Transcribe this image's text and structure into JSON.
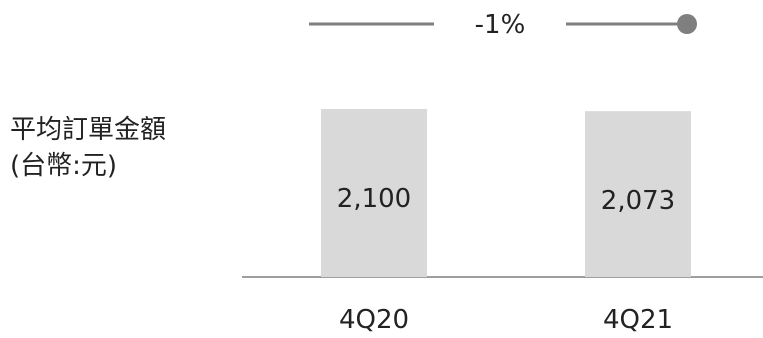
{
  "chart_data": {
    "type": "bar",
    "categories": [
      "4Q20",
      "4Q21"
    ],
    "values": [
      2100,
      2073
    ],
    "value_labels": [
      "2,100",
      "2,073"
    ],
    "ylabel_lines": [
      "平均訂單金額",
      "(台幣:元)"
    ],
    "ylim": [
      0,
      2700
    ],
    "grid": false,
    "legend": "none",
    "annotation": {
      "text": "-1%",
      "from": "4Q20",
      "to": "4Q21"
    },
    "colors": {
      "bar": "#d9d9d9",
      "arrow": "#7f7f7f",
      "axis": "#7f7f7f",
      "text": "#222222"
    }
  }
}
